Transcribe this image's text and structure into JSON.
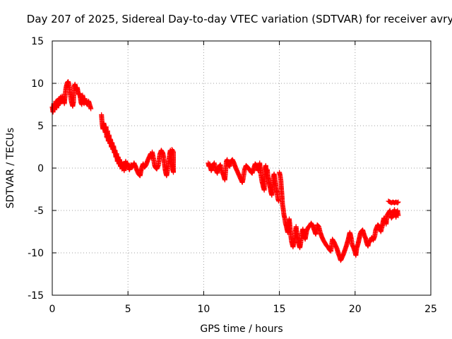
{
  "chart_data": {
    "type": "scatter",
    "title": "Day 207 of 2025, Sidereal Day-to-day VTEC variation (SDTVAR) for receiver avry",
    "xlabel": "GPS time / hours",
    "ylabel": "SDTVAR / TECUs",
    "xlim": [
      0,
      25
    ],
    "ylim": [
      -15,
      15
    ],
    "xticks": [
      0,
      5,
      10,
      15,
      20,
      25
    ],
    "yticks": [
      -15,
      -10,
      -5,
      0,
      5,
      10,
      15
    ],
    "grid": true,
    "marker": "+",
    "series": [
      {
        "name": "avry",
        "color": "#ff0000",
        "points": [
          [
            0.0,
            7.2
          ],
          [
            0.05,
            6.6
          ],
          [
            0.1,
            7.6
          ],
          [
            0.15,
            6.9
          ],
          [
            0.2,
            7.3
          ],
          [
            0.25,
            7.9
          ],
          [
            0.3,
            7.1
          ],
          [
            0.35,
            8.0
          ],
          [
            0.4,
            7.4
          ],
          [
            0.45,
            8.2
          ],
          [
            0.5,
            7.6
          ],
          [
            0.55,
            8.4
          ],
          [
            0.6,
            7.8
          ],
          [
            0.65,
            8.5
          ],
          [
            0.7,
            7.9
          ],
          [
            0.75,
            8.2
          ],
          [
            0.8,
            7.6
          ],
          [
            0.85,
            8.6
          ],
          [
            0.9,
            9.4
          ],
          [
            0.95,
            9.8
          ],
          [
            1.0,
            10.1
          ],
          [
            1.05,
            10.2
          ],
          [
            1.1,
            9.9
          ],
          [
            1.15,
            9.3
          ],
          [
            1.2,
            8.6
          ],
          [
            1.25,
            8.0
          ],
          [
            1.3,
            7.6
          ],
          [
            1.35,
            7.3
          ],
          [
            1.4,
            7.8
          ],
          [
            1.45,
            9.6
          ],
          [
            1.5,
            9.9
          ],
          [
            1.55,
            9.5
          ],
          [
            1.6,
            9.2
          ],
          [
            1.65,
            9.5
          ],
          [
            1.7,
            9.0
          ],
          [
            1.75,
            8.7
          ],
          [
            1.8,
            8.8
          ],
          [
            1.85,
            8.3
          ],
          [
            1.9,
            7.7
          ],
          [
            1.95,
            7.5
          ],
          [
            2.0,
            8.6
          ],
          [
            2.05,
            8.0
          ],
          [
            2.1,
            7.6
          ],
          [
            2.15,
            8.2
          ],
          [
            2.2,
            7.8
          ],
          [
            2.3,
            7.5
          ],
          [
            2.4,
            7.9
          ],
          [
            2.5,
            7.3
          ],
          [
            2.55,
            7.0
          ],
          [
            3.25,
            6.3
          ],
          [
            3.3,
            5.1
          ],
          [
            3.35,
            4.6
          ],
          [
            3.4,
            5.3
          ],
          [
            3.45,
            4.8
          ],
          [
            3.5,
            4.2
          ],
          [
            3.55,
            4.9
          ],
          [
            3.6,
            3.6
          ],
          [
            3.65,
            4.4
          ],
          [
            3.7,
            3.2
          ],
          [
            3.75,
            3.9
          ],
          [
            3.8,
            2.9
          ],
          [
            3.85,
            3.4
          ],
          [
            3.9,
            2.5
          ],
          [
            3.95,
            3.0
          ],
          [
            4.0,
            2.2
          ],
          [
            4.05,
            2.6
          ],
          [
            4.1,
            1.8
          ],
          [
            4.15,
            2.1
          ],
          [
            4.2,
            1.3
          ],
          [
            4.25,
            1.7
          ],
          [
            4.3,
            0.8
          ],
          [
            4.35,
            1.3
          ],
          [
            4.4,
            0.5
          ],
          [
            4.45,
            1.0
          ],
          [
            4.5,
            0.2
          ],
          [
            4.55,
            0.7
          ],
          [
            4.6,
            -0.1
          ],
          [
            4.65,
            0.5
          ],
          [
            4.7,
            0.1
          ],
          [
            4.75,
            -0.3
          ],
          [
            4.8,
            0.3
          ],
          [
            4.85,
            0.8
          ],
          [
            4.9,
            0.2
          ],
          [
            4.95,
            0.6
          ],
          [
            5.0,
            0.3
          ],
          [
            5.1,
            -0.2
          ],
          [
            5.2,
            0.4
          ],
          [
            5.3,
            0.1
          ],
          [
            5.4,
            0.6
          ],
          [
            5.5,
            0.2
          ],
          [
            5.6,
            -0.3
          ],
          [
            5.7,
            -0.7
          ],
          [
            5.8,
            -0.9
          ],
          [
            5.85,
            -0.4
          ],
          [
            5.9,
            0.0
          ],
          [
            6.0,
            0.5
          ],
          [
            6.1,
            0.1
          ],
          [
            6.2,
            0.4
          ],
          [
            6.3,
            0.9
          ],
          [
            6.4,
            1.3
          ],
          [
            6.5,
            1.7
          ],
          [
            6.55,
            1.2
          ],
          [
            6.6,
            1.9
          ],
          [
            6.7,
            1.0
          ],
          [
            6.75,
            0.4
          ],
          [
            6.8,
            0.1
          ],
          [
            6.9,
            -0.1
          ],
          [
            7.0,
            0.3
          ],
          [
            7.05,
            0.9
          ],
          [
            7.1,
            1.6
          ],
          [
            7.2,
            2.1
          ],
          [
            7.3,
            1.8
          ],
          [
            7.35,
            1.3
          ],
          [
            7.4,
            0.6
          ],
          [
            7.45,
            -0.1
          ],
          [
            7.5,
            -0.6
          ],
          [
            7.55,
            -0.9
          ],
          [
            7.6,
            -0.4
          ],
          [
            7.65,
            0.2
          ],
          [
            7.7,
            0.9
          ],
          [
            7.75,
            1.6
          ],
          [
            7.8,
            2.1
          ],
          [
            7.85,
            1.4
          ],
          [
            7.9,
            0.6
          ],
          [
            7.95,
            -0.1
          ],
          [
            8.0,
            -0.5
          ],
          [
            8.0,
            1.9
          ],
          [
            7.9,
            2.2
          ],
          [
            10.3,
            0.6
          ],
          [
            10.35,
            0.2
          ],
          [
            10.4,
            0.5
          ],
          [
            10.5,
            -0.3
          ],
          [
            10.6,
            0.3
          ],
          [
            10.7,
            0.6
          ],
          [
            10.8,
            -0.2
          ],
          [
            10.9,
            -0.6
          ],
          [
            11.0,
            0.1
          ],
          [
            11.1,
            0.4
          ],
          [
            11.2,
            -0.4
          ],
          [
            11.3,
            -0.8
          ],
          [
            11.4,
            -1.4
          ],
          [
            11.5,
            0.8
          ],
          [
            11.55,
            1.0
          ],
          [
            11.6,
            0.5
          ],
          [
            11.7,
            0.2
          ],
          [
            11.8,
            0.8
          ],
          [
            11.9,
            1.0
          ],
          [
            12.0,
            0.6
          ],
          [
            12.1,
            0.1
          ],
          [
            12.2,
            -0.3
          ],
          [
            12.3,
            -0.7
          ],
          [
            12.4,
            -1.1
          ],
          [
            12.5,
            -1.5
          ],
          [
            12.55,
            -1.7
          ],
          [
            12.6,
            -1.3
          ],
          [
            12.7,
            -0.2
          ],
          [
            12.8,
            0.3
          ],
          [
            12.9,
            0.1
          ],
          [
            13.0,
            -0.1
          ],
          [
            13.1,
            -0.4
          ],
          [
            13.2,
            -0.6
          ],
          [
            13.3,
            -0.1
          ],
          [
            13.35,
            0.2
          ],
          [
            13.4,
            0.5
          ],
          [
            13.5,
            0.3
          ],
          [
            13.6,
            -0.3
          ],
          [
            13.65,
            0.1
          ],
          [
            13.7,
            0.6
          ],
          [
            13.75,
            -0.3
          ],
          [
            13.8,
            -1.0
          ],
          [
            13.85,
            -1.6
          ],
          [
            13.9,
            -1.9
          ],
          [
            13.95,
            -2.3
          ],
          [
            14.0,
            -2.6
          ],
          [
            14.05,
            -0.1
          ],
          [
            14.1,
            0.3
          ],
          [
            14.15,
            -0.4
          ],
          [
            14.2,
            -0.2
          ],
          [
            14.25,
            -1.1
          ],
          [
            14.3,
            -1.6
          ],
          [
            14.35,
            -2.0
          ],
          [
            14.4,
            -2.4
          ],
          [
            14.45,
            -2.9
          ],
          [
            14.5,
            -3.2
          ],
          [
            14.55,
            -2.2
          ],
          [
            14.6,
            -1.1
          ],
          [
            14.65,
            -0.7
          ],
          [
            14.7,
            -1.2
          ],
          [
            14.75,
            -1.8
          ],
          [
            14.8,
            -2.5
          ],
          [
            14.85,
            -3.0
          ],
          [
            14.9,
            -3.6
          ],
          [
            14.95,
            -3.9
          ],
          [
            15.0,
            -0.5
          ],
          [
            15.05,
            -0.9
          ],
          [
            15.1,
            -1.5
          ],
          [
            15.12,
            -2.1
          ],
          [
            15.15,
            -2.8
          ],
          [
            15.18,
            -3.5
          ],
          [
            15.2,
            -4.2
          ],
          [
            15.25,
            -4.8
          ],
          [
            15.3,
            -5.5
          ],
          [
            15.35,
            -5.9
          ],
          [
            15.4,
            -6.5
          ],
          [
            15.45,
            -6.8
          ],
          [
            15.5,
            -7.2
          ],
          [
            15.55,
            -7.6
          ],
          [
            15.6,
            -6.6
          ],
          [
            15.65,
            -6.0
          ],
          [
            15.7,
            -6.9
          ],
          [
            15.75,
            -7.9
          ],
          [
            15.8,
            -8.6
          ],
          [
            15.85,
            -9.0
          ],
          [
            15.9,
            -9.3
          ],
          [
            15.95,
            -8.8
          ],
          [
            16.0,
            -8.4
          ],
          [
            16.05,
            -7.6
          ],
          [
            16.1,
            -6.9
          ],
          [
            16.15,
            -7.7
          ],
          [
            16.2,
            -8.2
          ],
          [
            16.25,
            -8.7
          ],
          [
            16.3,
            -9.1
          ],
          [
            16.35,
            -9.4
          ],
          [
            16.4,
            -8.9
          ],
          [
            16.45,
            -8.3
          ],
          [
            16.5,
            -7.6
          ],
          [
            16.55,
            -7.2
          ],
          [
            16.6,
            -7.8
          ],
          [
            16.7,
            -8.4
          ],
          [
            16.75,
            -7.9
          ],
          [
            16.8,
            -7.4
          ],
          [
            16.9,
            -7.0
          ],
          [
            17.0,
            -6.8
          ],
          [
            17.1,
            -6.5
          ],
          [
            17.2,
            -6.8
          ],
          [
            17.3,
            -7.3
          ],
          [
            17.4,
            -7.8
          ],
          [
            17.5,
            -6.7
          ],
          [
            17.6,
            -6.9
          ],
          [
            17.7,
            -7.6
          ],
          [
            17.8,
            -8.1
          ],
          [
            17.9,
            -8.5
          ],
          [
            18.0,
            -8.8
          ],
          [
            18.1,
            -9.1
          ],
          [
            18.2,
            -9.3
          ],
          [
            18.3,
            -9.6
          ],
          [
            18.4,
            -9.8
          ],
          [
            18.5,
            -8.4
          ],
          [
            18.6,
            -8.7
          ],
          [
            18.7,
            -9.1
          ],
          [
            18.8,
            -9.5
          ],
          [
            18.9,
            -10.1
          ],
          [
            19.0,
            -10.6
          ],
          [
            19.05,
            -10.9
          ],
          [
            19.1,
            -10.7
          ],
          [
            19.2,
            -10.3
          ],
          [
            19.3,
            -9.8
          ],
          [
            19.4,
            -9.3
          ],
          [
            19.45,
            -9.0
          ],
          [
            19.5,
            -8.7
          ],
          [
            19.55,
            -8.4
          ],
          [
            19.6,
            -8.0
          ],
          [
            19.65,
            -7.6
          ],
          [
            19.7,
            -7.9
          ],
          [
            19.75,
            -8.4
          ],
          [
            19.8,
            -9.0
          ],
          [
            19.9,
            -9.4
          ],
          [
            20.0,
            -9.9
          ],
          [
            20.05,
            -10.3
          ],
          [
            20.1,
            -9.5
          ],
          [
            20.2,
            -8.9
          ],
          [
            20.25,
            -8.5
          ],
          [
            20.3,
            -8.1
          ],
          [
            20.35,
            -7.7
          ],
          [
            20.4,
            -7.5
          ],
          [
            20.5,
            -7.3
          ],
          [
            20.55,
            -7.6
          ],
          [
            20.6,
            -7.9
          ],
          [
            20.7,
            -8.3
          ],
          [
            20.75,
            -8.7
          ],
          [
            20.8,
            -9.0
          ],
          [
            20.85,
            -9.2
          ],
          [
            20.9,
            -8.8
          ],
          [
            21.0,
            -8.6
          ],
          [
            21.1,
            -8.2
          ],
          [
            21.2,
            -8.5
          ],
          [
            21.3,
            -8.0
          ],
          [
            21.35,
            -7.4
          ],
          [
            21.4,
            -7.1
          ],
          [
            21.5,
            -6.7
          ],
          [
            21.6,
            -6.9
          ],
          [
            21.7,
            -7.5
          ],
          [
            21.8,
            -6.8
          ],
          [
            21.85,
            -6.3
          ],
          [
            21.9,
            -5.9
          ],
          [
            22.0,
            -6.2
          ],
          [
            22.05,
            -6.6
          ],
          [
            22.1,
            -5.6
          ],
          [
            22.2,
            -5.3
          ],
          [
            22.3,
            -5.0
          ],
          [
            22.35,
            -5.5
          ],
          [
            22.4,
            -5.9
          ],
          [
            22.5,
            -5.6
          ],
          [
            22.55,
            -5.2
          ],
          [
            22.6,
            -4.9
          ],
          [
            22.65,
            -5.4
          ],
          [
            22.7,
            -5.8
          ],
          [
            22.75,
            -5.3
          ],
          [
            22.8,
            -5.0
          ],
          [
            22.85,
            -5.6
          ],
          [
            22.2,
            -3.9
          ],
          [
            22.3,
            -4.0
          ],
          [
            22.4,
            -4.1
          ],
          [
            22.5,
            -4.0
          ],
          [
            22.6,
            -4.1
          ],
          [
            22.7,
            -4.0
          ],
          [
            22.8,
            -4.1
          ],
          [
            22.85,
            -4.0
          ]
        ]
      }
    ]
  }
}
